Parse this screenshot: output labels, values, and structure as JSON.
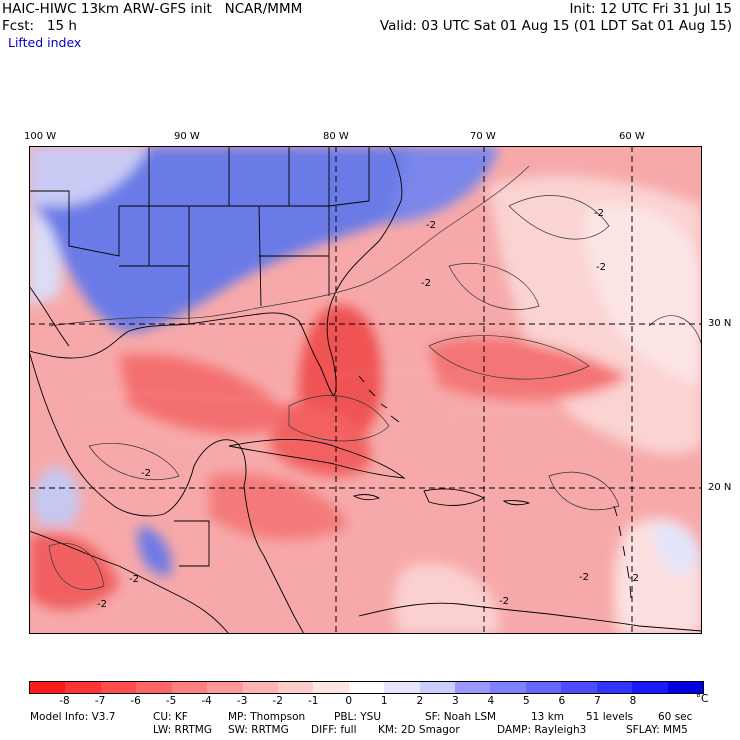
{
  "header": {
    "model_line": "HAIC-HIWC 13km ARW-GFS init   NCAR/MMM",
    "init": "Init: 12 UTC Fri 31 Jul 15",
    "fcst": "Fcst:   15 h",
    "valid": "Valid: 03 UTC Sat 01 Aug 15 (01 LDT Sat 01 Aug 15)",
    "field": "Lifted index"
  },
  "map": {
    "lon_labels": [
      "100 W",
      "90 W",
      "80 W",
      "70 W",
      "60 W"
    ],
    "lat_labels": [
      "30 N",
      "20 N"
    ],
    "contour_labels": [
      "-2"
    ],
    "colors": {
      "stable_blue": "#5a6ee0",
      "unstable_red": "#f06a6a",
      "neutral": "#ffe9e9"
    }
  },
  "colorbar": {
    "labels": [
      "-8",
      "-7",
      "-6",
      "-5",
      "-4",
      "-3",
      "-2",
      "-1",
      "0",
      "1",
      "2",
      "3",
      "4",
      "5",
      "6",
      "7",
      "8"
    ],
    "unit": "°C",
    "colors": [
      "#ff1a1a",
      "#ff3333",
      "#ff4d4d",
      "#ff6666",
      "#ff8080",
      "#ff9999",
      "#ffb3b3",
      "#ffcccc",
      "#ffe6e6",
      "#ffffff",
      "#e6e6ff",
      "#ccccff",
      "#9999ff",
      "#8080ff",
      "#6666ff",
      "#4d4dff",
      "#3333ff",
      "#1a1aff",
      "#0000e0"
    ]
  },
  "model_info": {
    "line1": [
      "Model Info: V3.7",
      "CU: KF",
      "MP: Thompson",
      "PBL: YSU",
      "SF: Noah LSM",
      "13 km",
      "51 levels",
      "60 sec"
    ],
    "line2": [
      "LW: RRTMG",
      "SW: RRTMG",
      "DIFF: full",
      "KM: 2D Smagor",
      "DAMP: Rayleigh3",
      "SFLAY: MM5"
    ]
  }
}
